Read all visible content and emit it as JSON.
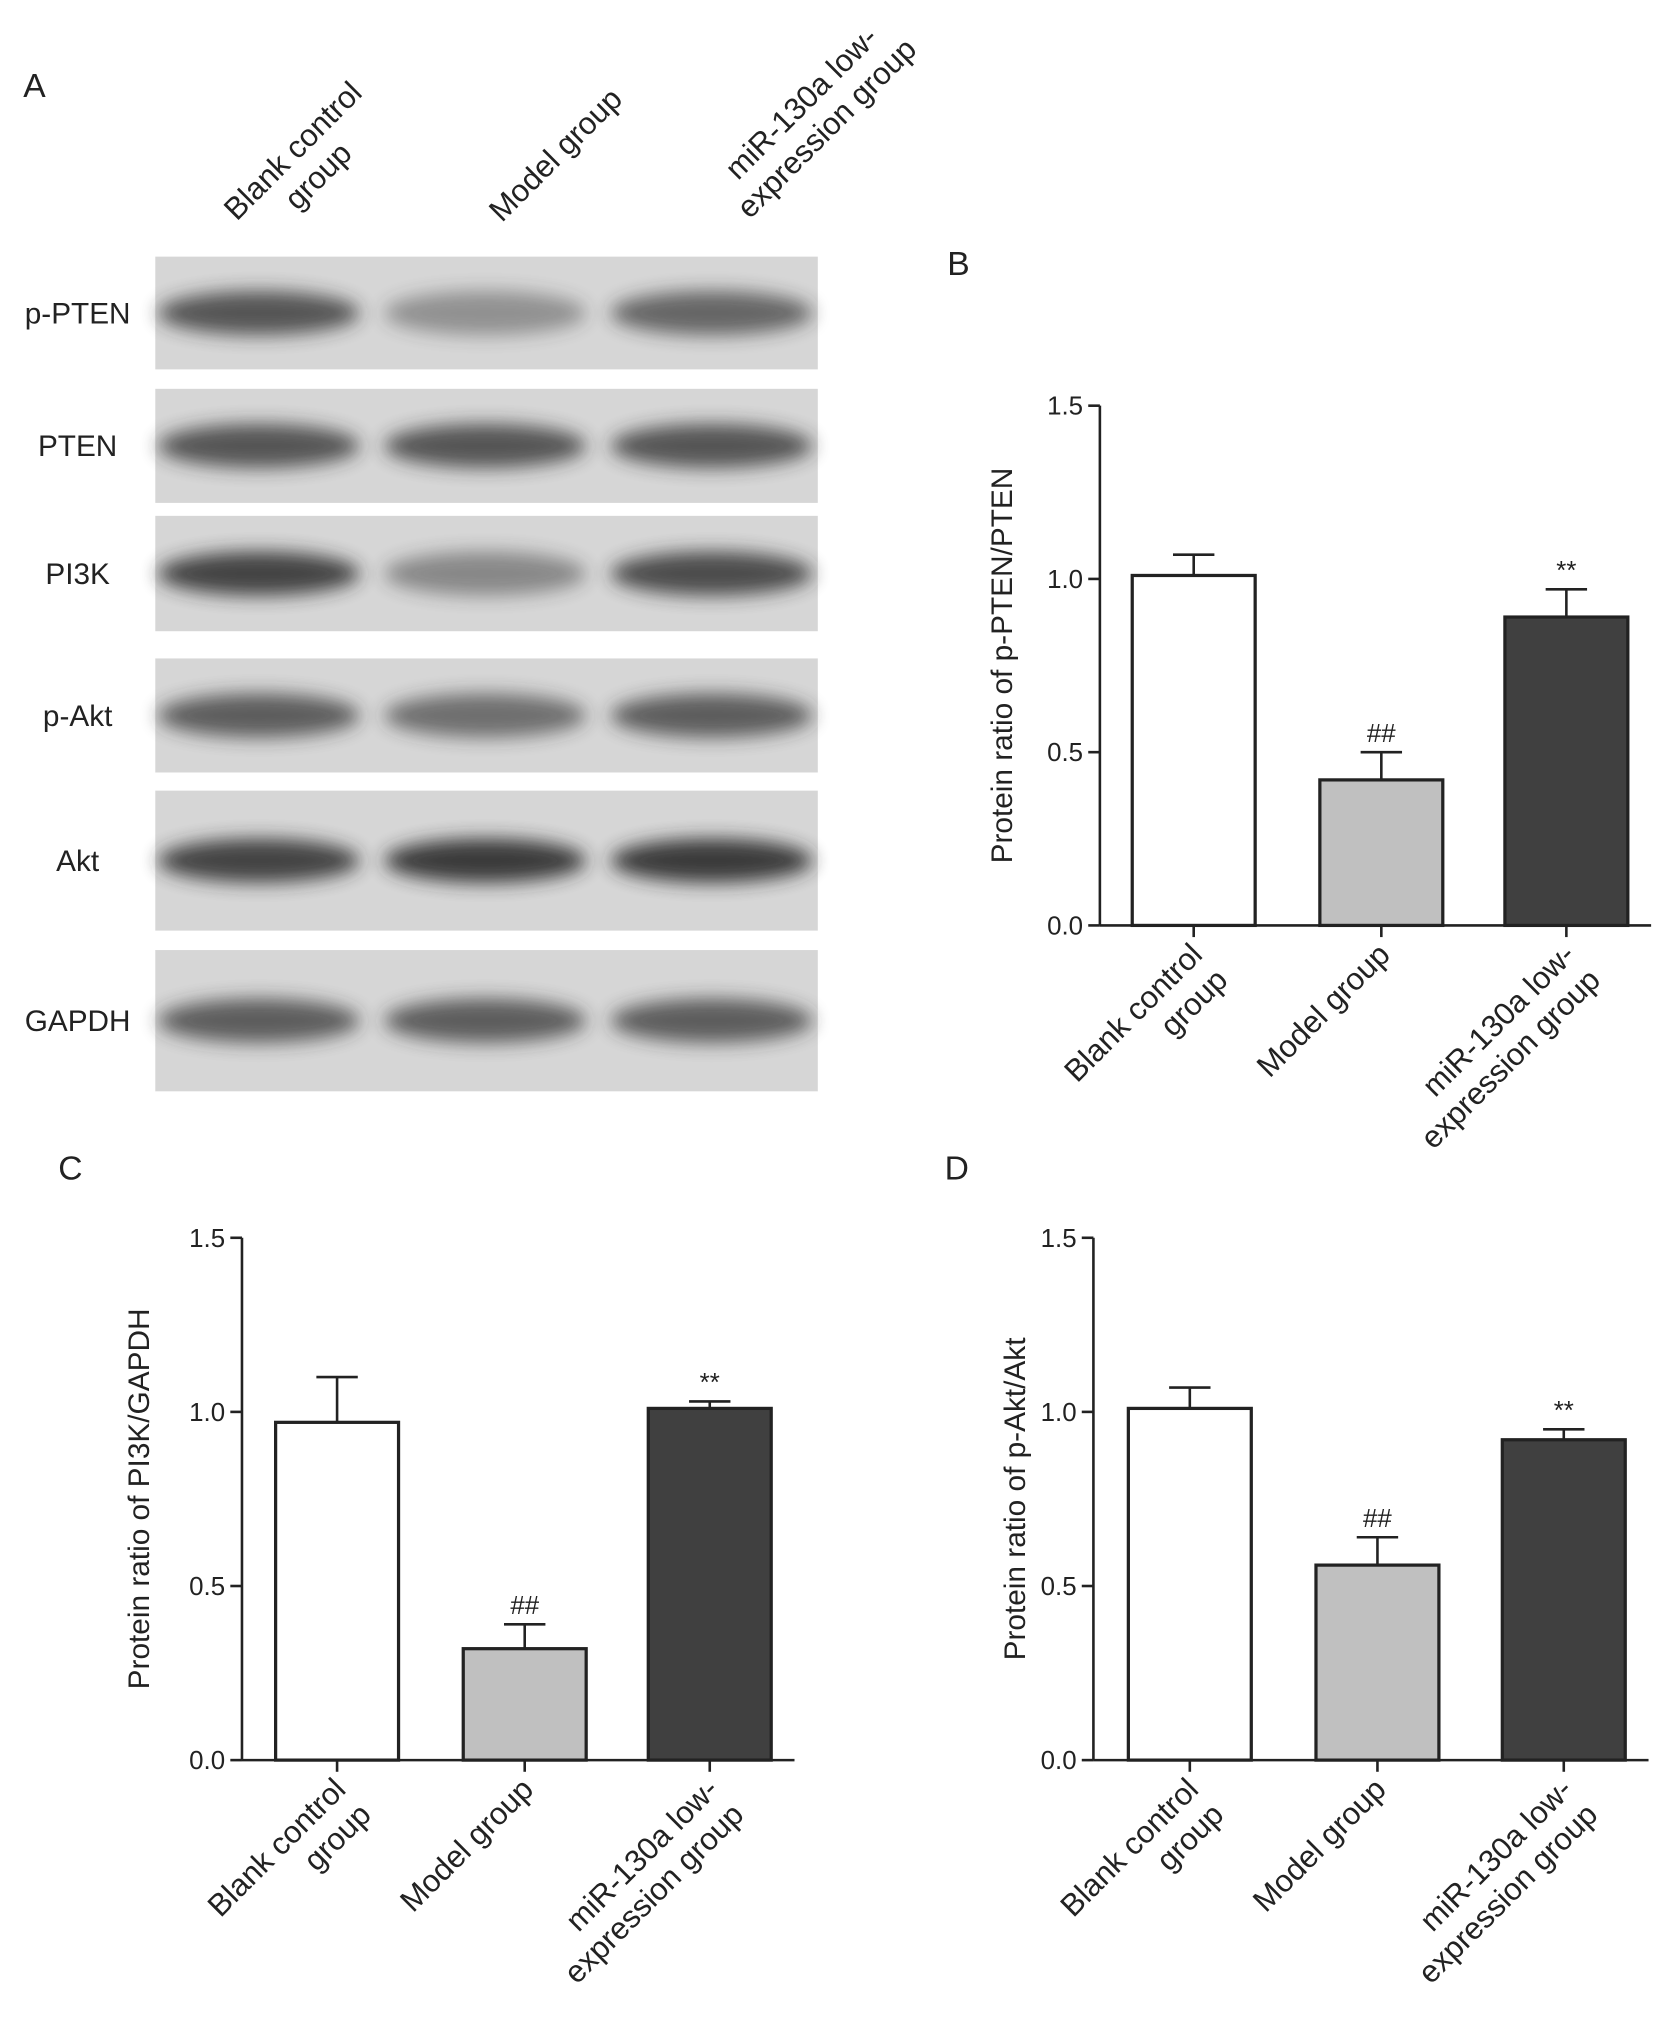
{
  "blot": {
    "panel": "A",
    "lanes": [
      "Blank control\ngroup",
      "Model group",
      "miR-130a low-\nexpression group"
    ],
    "proteins": [
      "p-PTEN",
      "PTEN",
      "PI3K",
      "p-Akt",
      "Akt",
      "GAPDH"
    ]
  },
  "chart_data": [
    {
      "type": "bar",
      "panel": "B",
      "y_label": "Protein ratio of p-PTEN/PTEN",
      "categories": [
        "Blank control\ngroup",
        "Model group",
        "miR-130a low-\nexpression group"
      ],
      "values": [
        1.01,
        0.42,
        0.89
      ],
      "errors": [
        0.06,
        0.08,
        0.08
      ],
      "annotations": [
        null,
        "##",
        "**"
      ],
      "colors": [
        "#ffffff",
        "#c0c0c0",
        "#404040"
      ],
      "ylim": [
        0,
        1.5
      ],
      "yticks": [
        {
          "value": 0,
          "label": "0.0"
        },
        0.5,
        {
          "value": 1,
          "label": "1.0"
        },
        1.5
      ]
    },
    {
      "type": "bar",
      "panel": "C",
      "y_label": "Protein ratio of PI3K/GAPDH",
      "categories": [
        "Blank control\ngroup",
        "Model group",
        "miR-130a low-\nexpression group"
      ],
      "values": [
        0.97,
        0.32,
        1.01
      ],
      "errors": [
        0.13,
        0.07,
        0.02
      ],
      "annotations": [
        null,
        "##",
        "**"
      ],
      "colors": [
        "#ffffff",
        "#c0c0c0",
        "#404040"
      ],
      "ylim": [
        0,
        1.5
      ],
      "yticks": [
        {
          "value": 0,
          "label": "0.0"
        },
        0.5,
        {
          "value": 1,
          "label": "1.0"
        },
        1.5
      ]
    },
    {
      "type": "bar",
      "panel": "D",
      "y_label": "Protein ratio of p-Akt/Akt",
      "categories": [
        "Blank control\ngroup",
        "Model group",
        "miR-130a low-\nexpression group"
      ],
      "values": [
        1.01,
        0.56,
        0.92
      ],
      "errors": [
        0.06,
        0.08,
        0.03
      ],
      "annotations": [
        null,
        "##",
        "**"
      ],
      "colors": [
        "#ffffff",
        "#c0c0c0",
        "#404040"
      ],
      "ylim": [
        0,
        1.5
      ],
      "yticks": [
        {
          "value": 0,
          "label": "0.0"
        },
        0.5,
        {
          "value": 1,
          "label": "1.0"
        },
        1.5
      ]
    }
  ]
}
